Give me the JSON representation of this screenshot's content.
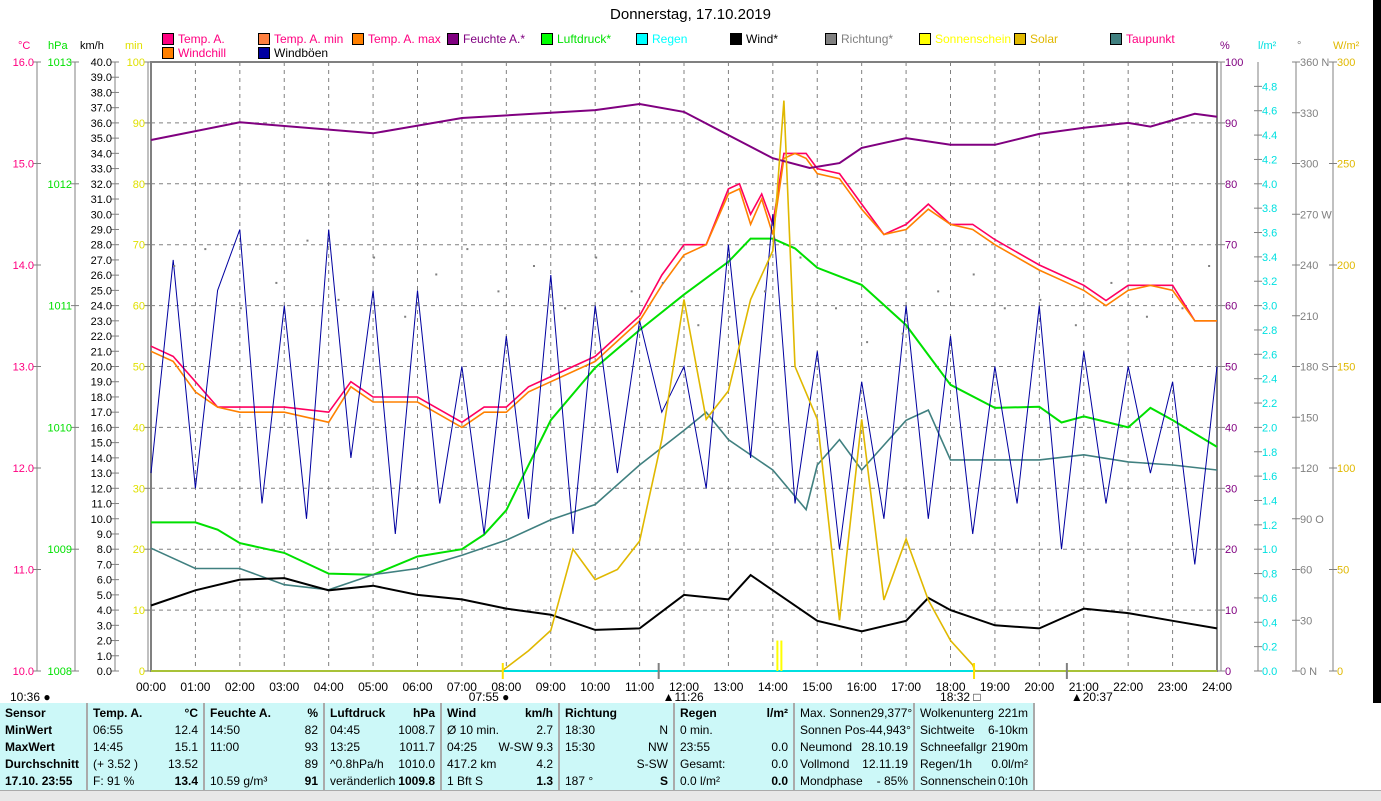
{
  "title": "Donnerstag, 17.10.2019",
  "legend": [
    {
      "label": "Temp. A.",
      "color": "#ff0080",
      "text": "#ff0080"
    },
    {
      "label": "Temp. A. min",
      "color": "#ff8040",
      "text": "#ff0080"
    },
    {
      "label": "Temp. A. max",
      "color": "#ff8000",
      "text": "#ff0080"
    },
    {
      "label": "Feuchte A.*",
      "color": "#800080",
      "text": "#800080"
    },
    {
      "label": "Luftdruck*",
      "color": "#00ff00",
      "text": "#00e000"
    },
    {
      "label": "Regen",
      "color": "#00ffff",
      "text": "#00ffff"
    },
    {
      "label": "Wind*",
      "color": "#000000",
      "text": "#000000"
    },
    {
      "label": "Richtung*",
      "color": "#808080",
      "text": "#808080"
    },
    {
      "label": "Sonnenschein",
      "color": "#ffff00",
      "text": "#ffff00"
    },
    {
      "label": "Solar",
      "color": "#e0b800",
      "text": "#e0b800"
    },
    {
      "label": "Taupunkt",
      "color": "#408080",
      "text": "#ff0080"
    },
    {
      "label": "Windchill",
      "color": "#ff8000",
      "text": "#ff0080"
    },
    {
      "label": "Windböen",
      "color": "#0000a0",
      "text": "#000000"
    }
  ],
  "units": {
    "c": "°C",
    "hpa": "hPa",
    "kmh": "km/h",
    "min": "min",
    "pct": "%",
    "rain": "l/m²",
    "deg": "°",
    "wm2": "W/m²"
  },
  "chart_data": {
    "type": "line",
    "x_ticks": [
      "00:00",
      "01:00",
      "02:00",
      "03:00",
      "04:00",
      "05:00",
      "06:00",
      "07:00",
      "08:00",
      "09:00",
      "10:00",
      "11:00",
      "12:00",
      "13:00",
      "14:00",
      "15:00",
      "16:00",
      "17:00",
      "18:00",
      "19:00",
      "20:00",
      "21:00",
      "22:00",
      "23:00",
      "24:00"
    ],
    "axes": {
      "c": {
        "range": [
          10,
          16
        ],
        "step": 1,
        "color": "#ff0080"
      },
      "hpa": {
        "range": [
          1008,
          1013
        ],
        "step": 1,
        "color": "#00e000"
      },
      "kmh": {
        "range": [
          0,
          40
        ],
        "step": 1,
        "color": "#000000"
      },
      "min": {
        "range": [
          0,
          100
        ],
        "step": 10,
        "color": "#e0e000"
      },
      "pct": {
        "range": [
          0,
          100
        ],
        "step": 10,
        "color": "#800080"
      },
      "rain": {
        "range": [
          0,
          5
        ],
        "step": 0.2,
        "color": "#00e0e0"
      },
      "deg": {
        "range": [
          0,
          360
        ],
        "step": 30,
        "color": "#808080",
        "compass": {
          "0": "N",
          "90": "O",
          "180": "S",
          "270": "W",
          "360": "N"
        }
      },
      "wm2": {
        "range": [
          0,
          300
        ],
        "step": 50,
        "color": "#e0b800"
      }
    },
    "grid": true,
    "series": [
      {
        "name": "Temp. A.",
        "axis": "c",
        "color": "#ff0060",
        "x": [
          0,
          0.5,
          1,
          1.5,
          2,
          3,
          4,
          4.5,
          5,
          6,
          7,
          7.5,
          8,
          8.5,
          9,
          10,
          11,
          11.5,
          12,
          12.5,
          13,
          13.25,
          13.5,
          13.75,
          14,
          14.25,
          14.5,
          14.75,
          15,
          15.5,
          16,
          16.5,
          17,
          17.5,
          18,
          18.5,
          19,
          20,
          20.5,
          21,
          21.5,
          22,
          22.5,
          23,
          23.5,
          24
        ],
        "y": [
          13.2,
          13.1,
          12.85,
          12.6,
          12.6,
          12.6,
          12.55,
          12.85,
          12.7,
          12.7,
          12.45,
          12.6,
          12.6,
          12.8,
          12.9,
          13.1,
          13.5,
          13.9,
          14.2,
          14.2,
          14.75,
          14.8,
          14.5,
          14.7,
          14.4,
          15.1,
          15.1,
          15.1,
          14.95,
          14.9,
          14.6,
          14.3,
          14.4,
          14.6,
          14.4,
          14.4,
          14.25,
          14.0,
          13.9,
          13.8,
          13.65,
          13.8,
          13.8,
          13.8,
          13.45,
          13.45
        ]
      },
      {
        "name": "Windchill",
        "axis": "c",
        "color": "#ff8000",
        "x": [
          0,
          0.5,
          1,
          1.5,
          2,
          3,
          4,
          4.5,
          5,
          6,
          7,
          7.5,
          8,
          8.5,
          9,
          10,
          11,
          11.5,
          12,
          12.5,
          13,
          13.25,
          13.5,
          13.75,
          14,
          14.25,
          14.5,
          14.75,
          15,
          15.5,
          16,
          16.5,
          17,
          17.5,
          18,
          18.5,
          19,
          20,
          20.5,
          21,
          21.5,
          22,
          22.5,
          23,
          23.5,
          24
        ],
        "y": [
          13.15,
          13.05,
          12.75,
          12.6,
          12.55,
          12.55,
          12.45,
          12.8,
          12.65,
          12.65,
          12.4,
          12.55,
          12.55,
          12.75,
          12.85,
          13.05,
          13.45,
          13.8,
          14.1,
          14.2,
          14.7,
          14.75,
          14.4,
          14.65,
          14.3,
          15.05,
          15.1,
          15.05,
          14.9,
          14.85,
          14.55,
          14.3,
          14.35,
          14.55,
          14.4,
          14.35,
          14.2,
          13.95,
          13.85,
          13.75,
          13.6,
          13.75,
          13.8,
          13.75,
          13.45,
          13.45
        ]
      },
      {
        "name": "Feuchte A.*",
        "axis": "pct",
        "color": "#800080",
        "x": [
          0,
          2,
          5,
          7,
          10,
          11,
          12,
          13,
          14,
          14.83,
          15.5,
          16,
          17,
          18,
          19,
          20,
          21,
          22,
          22.5,
          23.5,
          24
        ],
        "y": [
          87.2,
          90.1,
          88.3,
          90.8,
          92.1,
          93.1,
          91.8,
          88,
          84.2,
          82.6,
          83.4,
          85.9,
          87.5,
          86.4,
          86.4,
          88.2,
          89.2,
          90,
          89.4,
          91.5,
          91
        ]
      },
      {
        "name": "Luftdruck*",
        "axis": "hpa",
        "color": "#00e000",
        "x": [
          0,
          1,
          1.5,
          2,
          3,
          4,
          5,
          6,
          7,
          7.5,
          8,
          9,
          10,
          11,
          12,
          13,
          13.5,
          14,
          14.5,
          15,
          16,
          17,
          18,
          19,
          20,
          20.5,
          21,
          22,
          22.5,
          23,
          24
        ],
        "y": [
          1009.22,
          1009.22,
          1009.16,
          1009.05,
          1008.97,
          1008.8,
          1008.79,
          1008.94,
          1009.0,
          1009.12,
          1009.32,
          1010.06,
          1010.49,
          1010.8,
          1011.09,
          1011.36,
          1011.55,
          1011.55,
          1011.47,
          1011.31,
          1011.17,
          1010.84,
          1010.35,
          1010.16,
          1010.17,
          1010.04,
          1010.09,
          1010.0,
          1010.16,
          1010.06,
          1009.84
        ]
      },
      {
        "name": "Taupunkt",
        "axis": "c",
        "color": "#408080",
        "x": [
          0,
          1,
          2,
          3,
          4,
          5,
          6,
          7,
          8,
          9,
          10,
          11,
          12,
          12.5,
          13,
          14,
          14.75,
          15,
          15.5,
          16,
          17,
          17.5,
          18,
          19,
          20,
          21,
          22,
          23,
          24
        ],
        "y": [
          11.21,
          11.01,
          11.01,
          10.85,
          10.8,
          10.95,
          11.01,
          11.14,
          11.29,
          11.49,
          11.64,
          12.03,
          12.37,
          12.55,
          12.28,
          11.98,
          11.59,
          12.03,
          12.28,
          11.98,
          12.47,
          12.57,
          12.08,
          12.08,
          12.08,
          12.13,
          12.06,
          12.03,
          11.98
        ]
      },
      {
        "name": "Windböen",
        "axis": "kmh",
        "color": "#0000a0",
        "x": [
          0,
          0.5,
          1,
          1.5,
          2,
          2.5,
          3,
          3.5,
          4,
          4.5,
          5,
          5.5,
          6,
          6.5,
          7,
          7.5,
          8,
          8.5,
          9,
          9.5,
          10,
          10.5,
          11,
          11.5,
          12,
          12.5,
          13,
          13.5,
          14,
          14.5,
          15,
          15.5,
          16,
          16.5,
          17,
          17.5,
          18,
          18.5,
          19,
          19.5,
          20,
          20.5,
          21,
          21.5,
          22,
          22.5,
          23,
          23.5,
          24
        ],
        "y": [
          13,
          27,
          12,
          25,
          29,
          11,
          24,
          10,
          29,
          14,
          25,
          9,
          25,
          11,
          20,
          9,
          22,
          10,
          26,
          9,
          24,
          13,
          23,
          17,
          20,
          12,
          28,
          14,
          30,
          11,
          21,
          8,
          19,
          10,
          24,
          10,
          22,
          9,
          20,
          11,
          24,
          8,
          21,
          11,
          20,
          13,
          19,
          7,
          20
        ]
      },
      {
        "name": "Wind*",
        "axis": "kmh",
        "color": "#000000",
        "x": [
          0,
          1,
          2,
          3,
          4,
          5,
          6,
          7,
          8,
          9,
          10,
          11,
          12,
          13,
          13.5,
          14,
          15,
          16,
          17,
          17.5,
          18,
          19,
          20,
          21,
          22,
          23,
          24
        ],
        "y": [
          4.3,
          5.3,
          6.0,
          6.1,
          5.3,
          5.6,
          5.0,
          4.7,
          4.1,
          3.7,
          2.7,
          2.8,
          5.0,
          4.7,
          6.3,
          5.3,
          3.3,
          2.6,
          3.3,
          4.8,
          4.0,
          3.0,
          2.8,
          4.1,
          3.8,
          3.3,
          2.8
        ]
      },
      {
        "name": "Solar",
        "axis": "wm2",
        "color": "#e0b800",
        "x": [
          0,
          7.9,
          8.5,
          9,
          9.5,
          10,
          10.5,
          11,
          11.5,
          12,
          12.5,
          13,
          13.5,
          14,
          14.25,
          14.5,
          15,
          15.5,
          16,
          16.5,
          17,
          17.5,
          18,
          18.5,
          18.55,
          24
        ],
        "y": [
          0,
          0,
          10,
          20,
          60,
          45,
          50,
          64,
          114,
          183,
          124,
          138,
          183,
          207,
          281,
          150,
          124,
          25,
          124,
          35,
          65,
          35,
          15,
          3,
          0,
          0
        ]
      },
      {
        "name": "Richtung*",
        "axis": "deg",
        "color": "#808080",
        "type": "scatter",
        "x": [
          0.5,
          1.2,
          2,
          2.8,
          3.5,
          4.2,
          5,
          5.7,
          6.4,
          7.1,
          7.8,
          8.6,
          9.3,
          10,
          10.8,
          11.5,
          12.3,
          13,
          13.8,
          14.6,
          15.4,
          16.1,
          16.9,
          17.7,
          18.5,
          19.2,
          20,
          20.8,
          21.6,
          22.4,
          23.2,
          23.8
        ],
        "y": [
          240,
          250,
          215,
          230,
          255,
          220,
          245,
          210,
          235,
          250,
          225,
          240,
          215,
          245,
          225,
          230,
          205,
          210,
          225,
          245,
          215,
          195,
          200,
          225,
          235,
          215,
          220,
          205,
          230,
          210,
          215,
          240
        ]
      },
      {
        "name": "Sonnenschein",
        "axis": "min",
        "color": "#ffff00",
        "type": "bars",
        "x": [
          14.08,
          14.17
        ],
        "y": [
          5,
          5
        ]
      }
    ],
    "events": [
      {
        "time": "10:36",
        "symbol": "moon-set",
        "hour": 0
      },
      {
        "time": "07:55",
        "symbol": "sunrise",
        "hour": 7.92
      },
      {
        "time": "11:26",
        "symbol": "moon-rise",
        "hour": 11.43
      },
      {
        "time": "18:32",
        "symbol": "sunset",
        "hour": 18.53
      },
      {
        "time": "20:37",
        "symbol": "moon",
        "hour": 20.62
      }
    ]
  },
  "table": [
    {
      "h": [
        "Sensor",
        ""
      ],
      "rows": [
        [
          "MinWert",
          ""
        ],
        [
          "MaxWert",
          ""
        ],
        [
          "Durchschnitt",
          ""
        ],
        [
          "17.10. 23:55",
          ""
        ]
      ],
      "bold": true
    },
    {
      "h": [
        "Temp. A.",
        "°C"
      ],
      "rows": [
        [
          "06:55",
          "12.4"
        ],
        [
          "14:45",
          "15.1"
        ],
        [
          "(+ 3.52 )",
          "13.52"
        ],
        [
          "F: 91 %",
          "13.4"
        ]
      ]
    },
    {
      "h": [
        "Feuchte A.",
        "%"
      ],
      "rows": [
        [
          "14:50",
          "82"
        ],
        [
          "11:00",
          "93"
        ],
        [
          "",
          "89"
        ],
        [
          "10.59 g/m³",
          "91"
        ]
      ]
    },
    {
      "h": [
        "Luftdruck",
        "hPa"
      ],
      "rows": [
        [
          "04:45",
          "1008.7"
        ],
        [
          "13:25",
          "1011.7"
        ],
        [
          "^0.8hPa/h",
          "1010.0"
        ],
        [
          "veränderlich",
          "1009.8"
        ]
      ]
    },
    {
      "h": [
        "Wind",
        "km/h"
      ],
      "rows": [
        [
          "Ø 10 min.",
          "2.7"
        ],
        [
          "04:25",
          "W-SW 9.3"
        ],
        [
          "417.2 km",
          "4.2"
        ],
        [
          "1 Bft S",
          "1.3"
        ]
      ]
    },
    {
      "h": [
        "Richtung",
        ""
      ],
      "rows": [
        [
          "18:30",
          "N"
        ],
        [
          "15:30",
          "NW"
        ],
        [
          "",
          "S-SW"
        ],
        [
          "187 °",
          "S"
        ]
      ]
    },
    {
      "h": [
        "Regen",
        "l/m²"
      ],
      "rows": [
        [
          "0 min.",
          ""
        ],
        [
          "23:55",
          "0.0"
        ],
        [
          "Gesamt:",
          "0.0"
        ],
        [
          "0.0 l/m²",
          "0.0"
        ]
      ]
    },
    {
      "h": [
        "Max. Sonnen",
        "29,377°"
      ],
      "rows": [
        [
          "Sonnen Pos",
          "-44,943°"
        ],
        [
          "Neumond",
          "28.10.19"
        ],
        [
          "Vollmond",
          "12.11.19"
        ],
        [
          "Mondphase",
          "- 85%"
        ]
      ],
      "plain": true
    },
    {
      "h": [
        "Wolkenunterg",
        "221m"
      ],
      "rows": [
        [
          "Sichtweite",
          "6-10km"
        ],
        [
          "Schneefallgr",
          "2190m"
        ],
        [
          "Regen/1h",
          "0.0l/m²"
        ],
        [
          "Sonnenschein",
          "0:10h"
        ]
      ],
      "plain": true
    }
  ]
}
